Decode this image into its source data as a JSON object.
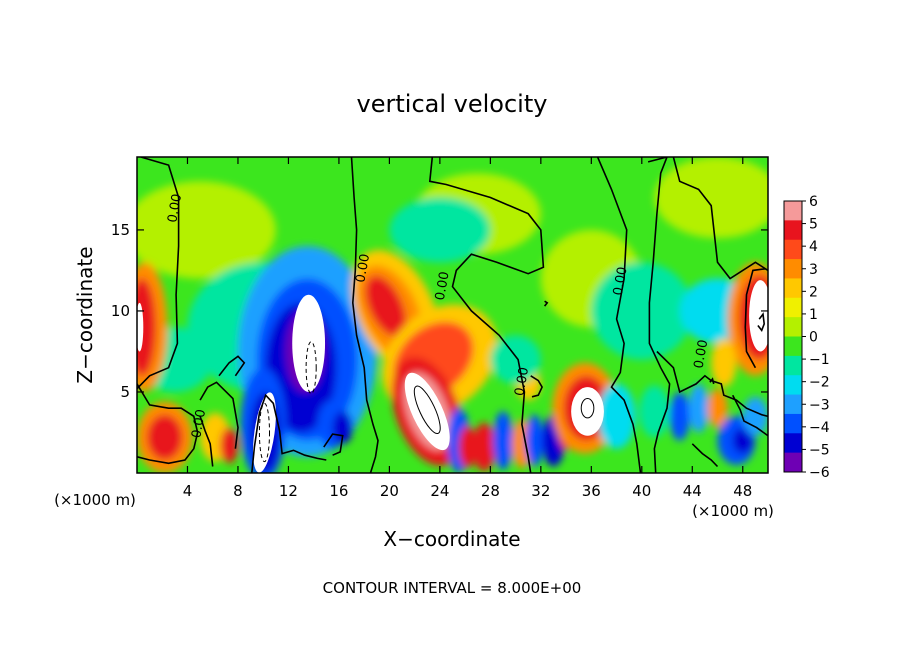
{
  "chart_data": {
    "type": "heatmap",
    "title": "vertical velocity",
    "xlabel": "X−coordinate",
    "ylabel": "Z−coordinate",
    "x_unit": "(×1000 m)",
    "y_unit": "(×1000 m)",
    "footer": "CONTOUR INTERVAL = 8.000E+00",
    "xlim": [
      0,
      50
    ],
    "ylim": [
      0,
      19.5
    ],
    "x_ticks": [
      4,
      8,
      12,
      16,
      20,
      24,
      28,
      32,
      36,
      40,
      44,
      48
    ],
    "y_ticks": [
      5,
      10,
      15
    ],
    "colorbar": {
      "min": -6,
      "max": 6,
      "tick_labels": [
        "6",
        "5",
        "4",
        "3",
        "2",
        "1",
        "0",
        "−1",
        "−2",
        "−3",
        "−4",
        "−5",
        "−6"
      ],
      "colors": [
        "#f59a9a",
        "#e8141e",
        "#ff4a1a",
        "#ff8c00",
        "#ffc800",
        "#f0f000",
        "#b4f000",
        "#3ce61e",
        "#00e6a0",
        "#00dcf0",
        "#1ea0ff",
        "#0050ff",
        "#0000d2",
        "#6e00b4"
      ]
    },
    "contour_labels": [
      {
        "text": "0.00",
        "x": 3.3,
        "z": 16.3
      },
      {
        "text": "0.00",
        "x": 18.2,
        "z": 12.6
      },
      {
        "text": "0.00",
        "x": 24.5,
        "z": 11.5
      },
      {
        "text": "0.00",
        "x": 30.8,
        "z": 5.6
      },
      {
        "text": "0.00",
        "x": 38.6,
        "z": 11.8
      },
      {
        "text": "0.00",
        "x": 45.0,
        "z": 7.3
      },
      {
        "text": "0.00",
        "x": 5.2,
        "z": 3.0
      }
    ],
    "features": [
      {
        "kind": "updraft",
        "x": 0.5,
        "z": 8.5,
        "level": 4
      },
      {
        "kind": "updraft",
        "x": 1.8,
        "z": 2.2,
        "level": 5
      },
      {
        "kind": "updraft",
        "x": 7.3,
        "z": 1.7,
        "level": 3
      },
      {
        "kind": "downdraft",
        "x": 13.0,
        "z": 6.5,
        "level": -5
      },
      {
        "kind": "downdraft",
        "x": 10.2,
        "z": 2.5,
        "level": -6
      },
      {
        "kind": "updraft",
        "x": 19.8,
        "z": 10.0,
        "level": 3
      },
      {
        "kind": "updraft",
        "x": 23.0,
        "z": 3.8,
        "level": 6
      },
      {
        "kind": "updraft",
        "x": 27.5,
        "z": 1.6,
        "level": 5
      },
      {
        "kind": "updraft",
        "x": 35.5,
        "z": 4.0,
        "level": 6
      },
      {
        "kind": "updraft",
        "x": 49.0,
        "z": 9.5,
        "level": 6
      },
      {
        "kind": "downdraft",
        "x": 33.0,
        "z": 2.0,
        "level": -4
      },
      {
        "kind": "downdraft",
        "x": 47.5,
        "z": 2.0,
        "level": -4
      }
    ]
  }
}
